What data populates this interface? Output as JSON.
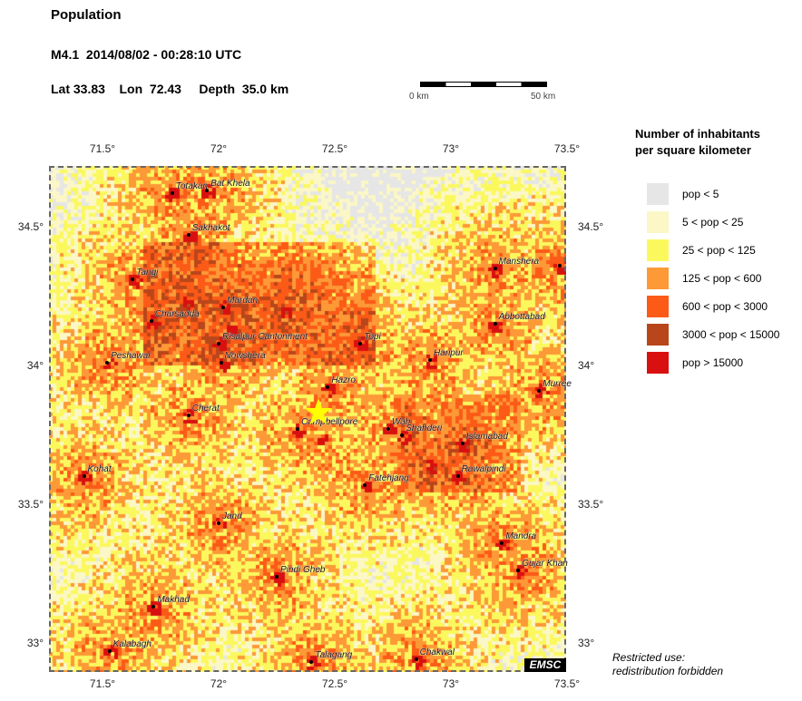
{
  "header": {
    "title": "Population",
    "event": "M4.1  2014/08/02 - 00:28:10 UTC",
    "location": "Lat 33.83    Lon  72.43     Depth  35.0 km"
  },
  "scale_bar": {
    "start": "0 km",
    "end": "50 km"
  },
  "axes": {
    "lon_ticks": [
      {
        "value": 71.5,
        "label": "71.5°"
      },
      {
        "value": 72,
        "label": "72°"
      },
      {
        "value": 72.5,
        "label": "72.5°"
      },
      {
        "value": 73,
        "label": "73°"
      },
      {
        "value": 73.5,
        "label": "73.5°"
      }
    ],
    "lat_ticks": [
      {
        "value": 34.5,
        "label": "34.5°"
      },
      {
        "value": 34,
        "label": "34°"
      },
      {
        "value": 33.5,
        "label": "33.5°"
      },
      {
        "value": 33,
        "label": "33°"
      }
    ]
  },
  "epicenter": {
    "lat": 33.83,
    "lon": 72.43,
    "color": "#ffff00",
    "icon": "star-icon"
  },
  "cities": [
    {
      "name": "Totakan",
      "lat": 34.62,
      "lon": 71.8
    },
    {
      "name": "Bat Khela",
      "lat": 34.63,
      "lon": 71.95
    },
    {
      "name": "Sakhakot",
      "lat": 34.47,
      "lon": 71.87
    },
    {
      "name": "Tangi",
      "lat": 34.31,
      "lon": 71.63
    },
    {
      "name": "Charsadda",
      "lat": 34.16,
      "lon": 71.71
    },
    {
      "name": "Mardan",
      "lat": 34.21,
      "lon": 72.02
    },
    {
      "name": "Risalpur Cantonment",
      "lat": 34.08,
      "lon": 72.0
    },
    {
      "name": "Nowshera",
      "lat": 34.01,
      "lon": 72.01
    },
    {
      "name": "Peshawar",
      "lat": 34.01,
      "lon": 71.52
    },
    {
      "name": "Topi",
      "lat": 34.08,
      "lon": 72.61
    },
    {
      "name": "Hazro",
      "lat": 33.92,
      "lon": 72.47
    },
    {
      "name": "Cherat",
      "lat": 33.82,
      "lon": 71.87
    },
    {
      "name": "Campbellpore",
      "lat": 33.77,
      "lon": 72.34
    },
    {
      "name": "Wah",
      "lat": 33.77,
      "lon": 72.73
    },
    {
      "name": "Shahderi",
      "lat": 33.75,
      "lon": 72.79
    },
    {
      "name": "Islamabad",
      "lat": 33.72,
      "lon": 73.05
    },
    {
      "name": "Rawalpindi",
      "lat": 33.6,
      "lon": 73.03
    },
    {
      "name": "Haripur",
      "lat": 34.02,
      "lon": 72.91
    },
    {
      "name": "Abbottabad",
      "lat": 34.15,
      "lon": 73.19
    },
    {
      "name": "Manshera",
      "lat": 34.35,
      "lon": 73.19
    },
    {
      "name": "Murree",
      "lat": 33.91,
      "lon": 73.38
    },
    {
      "name": "Kohat",
      "lat": 33.6,
      "lon": 71.42
    },
    {
      "name": "Fatehjang",
      "lat": 33.57,
      "lon": 72.63
    },
    {
      "name": "Jand",
      "lat": 33.43,
      "lon": 72.0
    },
    {
      "name": "Mandra",
      "lat": 33.36,
      "lon": 73.22
    },
    {
      "name": "Gujar Khan",
      "lat": 33.26,
      "lon": 73.29
    },
    {
      "name": "Pindi Gheb",
      "lat": 33.24,
      "lon": 72.25
    },
    {
      "name": "Makhad",
      "lat": 33.13,
      "lon": 71.72
    },
    {
      "name": "Kalabagh",
      "lat": 32.97,
      "lon": 71.53
    },
    {
      "name": "Talagang",
      "lat": 32.93,
      "lon": 72.4
    },
    {
      "name": "Chakwal",
      "lat": 32.94,
      "lon": 72.85
    },
    {
      "name": "",
      "lat": 34.36,
      "lon": 73.47
    }
  ],
  "legend": {
    "title_line1": "Number of inhabitants",
    "title_line2": "per square kilometer",
    "items": [
      {
        "label": "pop < 5",
        "color": "#e6e6e6"
      },
      {
        "label": "5 < pop < 25",
        "color": "#fbf7c6"
      },
      {
        "label": "25 < pop < 125",
        "color": "#fbf85e"
      },
      {
        "label": "125 < pop < 600",
        "color": "#fd9936"
      },
      {
        "label": "600 < pop < 3000",
        "color": "#fc5a17"
      },
      {
        "label": "3000 < pop < 15000",
        "color": "#b8461a"
      },
      {
        "label": "pop > 15000",
        "color": "#d8100f"
      }
    ]
  },
  "logo": "EMSC",
  "notice": {
    "line1": "Restricted use:",
    "line2": "redistribution forbidden"
  }
}
